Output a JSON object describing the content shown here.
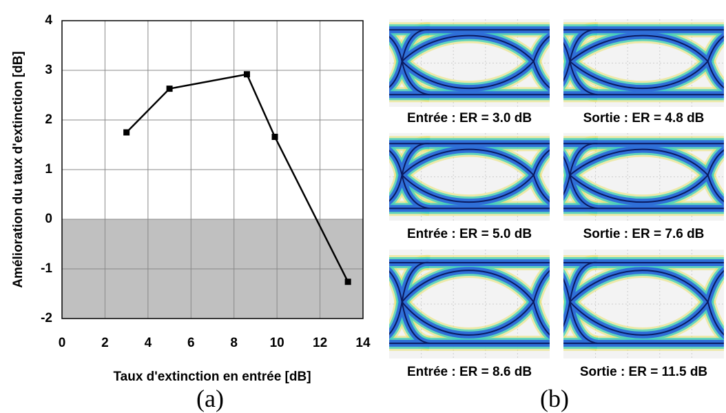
{
  "chart_data": {
    "type": "line",
    "y_label": "Amélioration du taux d'extinction [dB]",
    "x_label": "Taux d'extinction en entrée [dB]",
    "x": [
      3.0,
      5.0,
      8.6,
      9.9,
      13.3
    ],
    "series": [
      {
        "color": "#000000",
        "values": [
          1.75,
          2.63,
          2.92,
          1.66,
          -1.26
        ]
      }
    ],
    "xlim": [
      0,
      14
    ],
    "xticks": [
      0,
      2,
      4,
      6,
      8,
      10,
      12,
      14
    ],
    "ylim": [
      -2,
      4
    ],
    "yticks": [
      -2,
      -1,
      0,
      1,
      2,
      3,
      4
    ],
    "grid": true,
    "shaded_ylim": [
      -2,
      0
    ],
    "shade_color": "#c0c0c0"
  },
  "eye_diagrams": {
    "captions": [
      "Entrée : ER = 3.0 dB",
      "Sortie : ER = 4.8 dB",
      "Entrée : ER = 5.0 dB",
      "Sortie : ER = 7.6 dB",
      "Entrée : ER = 8.6 dB",
      "Sortie : ER = 11.5 dB"
    ]
  },
  "panel_labels": [
    "(a)",
    "(b)"
  ]
}
